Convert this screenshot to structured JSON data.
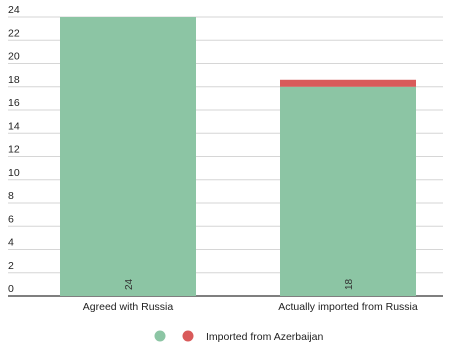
{
  "chart_data": {
    "type": "bar",
    "stacked": true,
    "categories": [
      "Agreed with Russia",
      "Actually imported from Russia"
    ],
    "series": [
      {
        "name": "",
        "values": [
          24,
          18
        ],
        "color": "#8cc5a4",
        "labels": [
          "24",
          "18"
        ]
      },
      {
        "name": "Imported from Azerbaijan",
        "values": [
          0,
          0.6
        ],
        "color": "#d95a5a"
      }
    ],
    "yticks": [
      0,
      2,
      4,
      6,
      8,
      10,
      12,
      14,
      16,
      18,
      20,
      22,
      24
    ],
    "ylim": [
      0,
      24
    ],
    "grid": true,
    "legend_position": "bottom-center"
  }
}
